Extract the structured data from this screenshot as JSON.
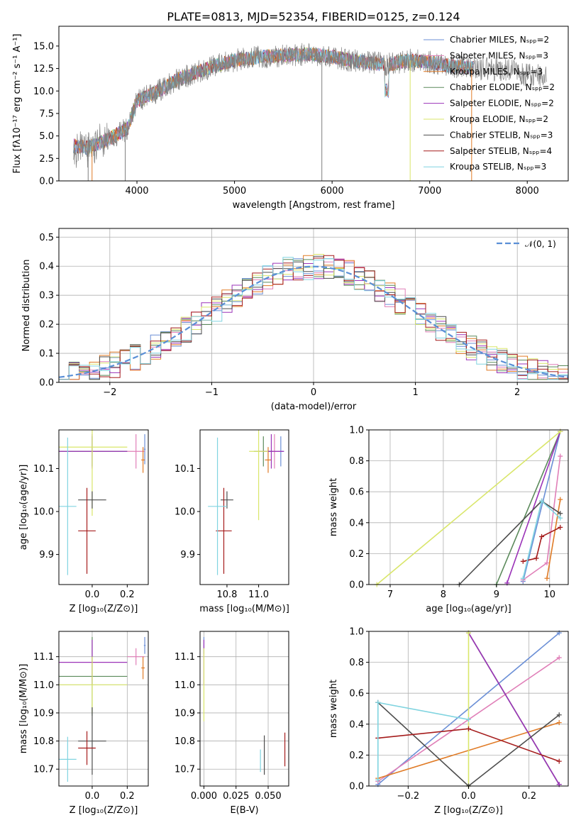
{
  "colors": {
    "chabrier_miles": "#6b8fd6",
    "salpeter_miles": "#e07fb8",
    "kroupa_miles": "#e07b26",
    "chabrier_elodie": "#5b8a5b",
    "salpeter_elodie": "#9b33b8",
    "kroupa_elodie": "#d9e66a",
    "chabrier_stelib": "#4d4d4d",
    "salpeter_stelib": "#a51c1c",
    "kroupa_stelib": "#80d4e0",
    "gauss": "#5a8fd6"
  },
  "chart_data": [
    {
      "id": "spectrum",
      "type": "line",
      "title": "PLATE=0813, MJD=52354, FIBERID=0125, z=0.124",
      "xlabel": "wavelength [Angstrom, rest frame]",
      "ylabel": "Flux [fλ10⁻¹⁷ erg cm⁻² s⁻¹ A⁻¹]",
      "xlim": [
        3200,
        8420
      ],
      "ylim": [
        0,
        17.2
      ],
      "xticks": [
        "4000",
        "5000",
        "6000",
        "7000",
        "8000"
      ],
      "yticks": [
        "0.0",
        "2.5",
        "5.0",
        "7.5",
        "10.0",
        "12.5",
        "15.0"
      ],
      "legend_position": "top-right",
      "legend": [
        "Chabrier MILES, Nₛₚₚ=2",
        "Salpeter MILES, Nₛₚₚ=3",
        "Kroupa MILES, Nₛₚₚ=3",
        "Chabrier ELODIE, Nₛₚₚ=2",
        "Salpeter ELODIE, Nₛₚₚ=2",
        "Kroupa ELODIE, Nₛₚₚ=2",
        "Chabrier STELIB, Nₛₚₚ=3",
        "Salpeter STELIB, Nₛₚₚ=4",
        "Kroupa STELIB, Nₛₚₚ=3"
      ],
      "continuum": {
        "x": [
          3350,
          3500,
          3700,
          3900,
          4000,
          4200,
          4400,
          4600,
          4800,
          5000,
          5200,
          5400,
          5600,
          5800,
          6000,
          6200,
          6400,
          6600,
          6800,
          7000,
          7200,
          7400,
          7600,
          7800,
          8000,
          8200
        ],
        "y": [
          3.9,
          3.7,
          4.6,
          5.8,
          8.9,
          9.9,
          11.2,
          12.0,
          12.8,
          13.4,
          13.7,
          13.9,
          14.0,
          14.1,
          13.8,
          13.4,
          13.1,
          13.0,
          13.4,
          13.2,
          12.8,
          12.6,
          12.4,
          12.3,
          11.8,
          11.6
        ]
      }
    },
    {
      "id": "residuals",
      "type": "bar",
      "xlabel": "(data-model)/error",
      "ylabel": "Normed distribution",
      "xlim": [
        -2.5,
        2.5
      ],
      "ylim": [
        0,
        0.53
      ],
      "xticks": [
        "−2",
        "−1",
        "0",
        "1",
        "2"
      ],
      "yticks": [
        "0.0",
        "0.1",
        "0.2",
        "0.3",
        "0.4",
        "0.5"
      ],
      "legend": [
        "𝒩(0, 1)"
      ],
      "legend_position": "top-right",
      "gaussian": {
        "mu": 0,
        "sigma": 1
      }
    },
    {
      "id": "age_vs_Z",
      "type": "scatter",
      "xlabel": "Z [log₁₀(Z/Z⊙)]",
      "ylabel": "age  [log₁₀(age/yr)]",
      "xlim": [
        -0.19,
        0.32
      ],
      "ylim": [
        9.83,
        10.19
      ],
      "xticks": [
        "0.0",
        "0.2"
      ],
      "yticks": [
        "9.9",
        "10.0",
        "10.1"
      ],
      "points": [
        {
          "c": "chabrier_miles",
          "x": 0.3,
          "y": 10.145,
          "xerr": 0.005,
          "yerr": 0.035
        },
        {
          "c": "salpeter_miles",
          "x": 0.25,
          "y": 10.14,
          "xerr": 0.05,
          "yerr": 0.04
        },
        {
          "c": "kroupa_miles",
          "x": 0.29,
          "y": 10.12,
          "xerr": 0.01,
          "yerr": 0.03
        },
        {
          "c": "chabrier_elodie",
          "x": 0.0,
          "y": 10.14,
          "xerr": 0.2,
          "yerr": 0.035
        },
        {
          "c": "salpeter_elodie",
          "x": 0.0,
          "y": 10.14,
          "xerr": 0.2,
          "yerr": 0.04
        },
        {
          "c": "kroupa_elodie",
          "x": 0.0,
          "y": 10.15,
          "xerr": 0.2,
          "yerr": 0.16
        },
        {
          "c": "chabrier_stelib",
          "x": 0.0,
          "y": 10.027,
          "xerr": 0.08,
          "yerr": 0.02
        },
        {
          "c": "salpeter_stelib",
          "x": -0.03,
          "y": 9.955,
          "xerr": 0.05,
          "yerr": 0.1
        },
        {
          "c": "kroupa_stelib",
          "x": -0.14,
          "y": 10.012,
          "xerr": 0.05,
          "yerr": 0.16
        }
      ]
    },
    {
      "id": "age_vs_mass",
      "type": "scatter",
      "xlabel": "mass [log₁₀(M/M⊙)]",
      "ylabel": "",
      "xlim": [
        10.63,
        11.19
      ],
      "ylim": [
        9.83,
        10.19
      ],
      "xticks": [
        "10.8",
        "11.0"
      ],
      "yticks": [
        "9.9",
        "10.0",
        "10.1"
      ],
      "points": [
        {
          "c": "chabrier_miles",
          "x": 11.14,
          "y": 10.14,
          "xerr": 0.02,
          "yerr": 0.035
        },
        {
          "c": "salpeter_miles",
          "x": 11.1,
          "y": 10.14,
          "xerr": 0.04,
          "yerr": 0.04
        },
        {
          "c": "kroupa_miles",
          "x": 11.06,
          "y": 10.12,
          "xerr": 0.02,
          "yerr": 0.03
        },
        {
          "c": "chabrier_elodie",
          "x": 11.03,
          "y": 10.14,
          "xerr": 0.06,
          "yerr": 0.035
        },
        {
          "c": "salpeter_elodie",
          "x": 11.08,
          "y": 10.14,
          "xerr": 0.08,
          "yerr": 0.04
        },
        {
          "c": "kroupa_elodie",
          "x": 11.0,
          "y": 10.14,
          "xerr": 0.06,
          "yerr": 0.16
        },
        {
          "c": "chabrier_stelib",
          "x": 10.8,
          "y": 10.027,
          "xerr": 0.04,
          "yerr": 0.02
        },
        {
          "c": "salpeter_stelib",
          "x": 10.78,
          "y": 9.955,
          "xerr": 0.05,
          "yerr": 0.1
        },
        {
          "c": "kroupa_stelib",
          "x": 10.74,
          "y": 10.012,
          "xerr": 0.06,
          "yerr": 0.16
        }
      ]
    },
    {
      "id": "massweight_vs_age",
      "type": "line",
      "xlabel": "age  [log₁₀(age/yr)]",
      "ylabel": "mass weight",
      "xlim": [
        6.6,
        10.35
      ],
      "ylim": [
        0,
        1
      ],
      "xticks": [
        "7",
        "8",
        "9",
        "10"
      ],
      "yticks": [
        "0.0",
        "0.2",
        "0.4",
        "0.6",
        "0.8",
        "1.0"
      ],
      "series": [
        {
          "c": "chabrier_miles",
          "x": [
            9.5,
            10.2
          ],
          "y": [
            0.02,
            0.99
          ]
        },
        {
          "c": "salpeter_miles",
          "x": [
            9.5,
            9.95,
            10.2
          ],
          "y": [
            0.03,
            0.14,
            0.83
          ]
        },
        {
          "c": "kroupa_miles",
          "x": [
            9.95,
            10.2
          ],
          "y": [
            0.04,
            0.55
          ]
        },
        {
          "c": "chabrier_elodie",
          "x": [
            9.0,
            10.2
          ],
          "y": [
            0.0,
            0.99
          ]
        },
        {
          "c": "salpeter_elodie",
          "x": [
            9.2,
            10.2
          ],
          "y": [
            0.01,
            0.99
          ]
        },
        {
          "c": "kroupa_elodie",
          "x": [
            6.75,
            10.2
          ],
          "y": [
            0.0,
            0.99
          ]
        },
        {
          "c": "chabrier_stelib",
          "x": [
            8.3,
            9.85,
            10.2
          ],
          "y": [
            0.0,
            0.54,
            0.46
          ]
        },
        {
          "c": "salpeter_stelib",
          "x": [
            9.5,
            9.75,
            9.85,
            10.2
          ],
          "y": [
            0.15,
            0.17,
            0.31,
            0.37
          ]
        },
        {
          "c": "kroupa_stelib",
          "x": [
            9.5,
            9.85,
            10.2
          ],
          "y": [
            0.04,
            0.54,
            0.43
          ]
        }
      ]
    },
    {
      "id": "mass_vs_Z",
      "type": "scatter",
      "xlabel": "Z [log₁₀(Z/Z⊙)]",
      "ylabel": "mass [log₁₀(M/M⊙)]",
      "xlim": [
        -0.19,
        0.32
      ],
      "ylim": [
        10.64,
        11.19
      ],
      "xticks": [
        "0.0",
        "0.2"
      ],
      "yticks": [
        "10.7",
        "10.8",
        "10.9",
        "11.0",
        "11.1"
      ],
      "points": [
        {
          "c": "chabrier_miles",
          "x": 0.3,
          "y": 11.14,
          "xerr": 0.005,
          "yerr": 0.03
        },
        {
          "c": "salpeter_miles",
          "x": 0.25,
          "y": 11.1,
          "xerr": 0.05,
          "yerr": 0.03
        },
        {
          "c": "kroupa_miles",
          "x": 0.29,
          "y": 11.06,
          "xerr": 0.01,
          "yerr": 0.04
        },
        {
          "c": "chabrier_elodie",
          "x": 0.0,
          "y": 11.03,
          "xerr": 0.2,
          "yerr": 0.14
        },
        {
          "c": "salpeter_elodie",
          "x": 0.0,
          "y": 11.08,
          "xerr": 0.2,
          "yerr": 0.08
        },
        {
          "c": "kroupa_elodie",
          "x": 0.0,
          "y": 11.0,
          "xerr": 0.2,
          "yerr": 0.1
        },
        {
          "c": "chabrier_stelib",
          "x": 0.0,
          "y": 10.8,
          "xerr": 0.08,
          "yerr": 0.12
        },
        {
          "c": "salpeter_stelib",
          "x": -0.03,
          "y": 10.775,
          "xerr": 0.05,
          "yerr": 0.06
        },
        {
          "c": "kroupa_stelib",
          "x": -0.14,
          "y": 10.735,
          "xerr": 0.05,
          "yerr": 0.08
        }
      ]
    },
    {
      "id": "mass_vs_ebv",
      "type": "scatter",
      "xlabel": "E(B-V)",
      "ylabel": "",
      "xlim": [
        -0.003,
        0.066
      ],
      "ylim": [
        10.64,
        11.19
      ],
      "xticks": [
        "0.000",
        "0.025",
        "0.050"
      ],
      "yticks": [
        "10.7",
        "10.8",
        "10.9",
        "11.0",
        "11.1"
      ],
      "points": [
        {
          "c": "chabrier_miles",
          "x": 0.0,
          "y": 11.14,
          "xerr": 0,
          "yerr": 0.03
        },
        {
          "c": "salpeter_elodie",
          "x": 0.0,
          "y": 11.08,
          "xerr": 0,
          "yerr": 0.08
        },
        {
          "c": "kroupa_elodie",
          "x": 0.0,
          "y": 11.0,
          "xerr": 0,
          "yerr": 0.13
        },
        {
          "c": "chabrier_stelib",
          "x": 0.047,
          "y": 10.75,
          "xerr": 0,
          "yerr": 0.07
        },
        {
          "c": "salpeter_stelib",
          "x": 0.063,
          "y": 10.77,
          "xerr": 0,
          "yerr": 0.06
        },
        {
          "c": "kroupa_stelib",
          "x": 0.044,
          "y": 10.73,
          "xerr": 0,
          "yerr": 0.04
        }
      ]
    },
    {
      "id": "massweight_vs_Z",
      "type": "line",
      "xlabel": "Z [log₁₀(Z/Z⊙)]",
      "ylabel": "mass weight",
      "xlim": [
        -0.33,
        0.33
      ],
      "ylim": [
        0,
        1
      ],
      "xticks": [
        "−0.2",
        "0.0",
        "0.2"
      ],
      "yticks": [
        "0.0",
        "0.2",
        "0.4",
        "0.6",
        "0.8",
        "1.0"
      ],
      "series": [
        {
          "c": "chabrier_miles",
          "x": [
            -0.3,
            0.3
          ],
          "y": [
            0.01,
            0.99
          ]
        },
        {
          "c": "salpeter_miles",
          "x": [
            -0.3,
            0.3
          ],
          "y": [
            0.03,
            0.83
          ]
        },
        {
          "c": "kroupa_miles",
          "x": [
            -0.3,
            0.3
          ],
          "y": [
            0.05,
            0.41
          ]
        },
        {
          "c": "chabrier_elodie",
          "x": [
            0.0,
            0.3
          ],
          "y": [
            0.99,
            0.01
          ]
        },
        {
          "c": "salpeter_elodie",
          "x": [
            0.0,
            0.3
          ],
          "y": [
            0.99,
            0.01
          ]
        },
        {
          "c": "kroupa_elodie",
          "x": [
            0.0,
            0.0
          ],
          "y": [
            0.0,
            0.99
          ]
        },
        {
          "c": "chabrier_stelib",
          "x": [
            -0.3,
            0.0,
            0.3
          ],
          "y": [
            0.54,
            0.0,
            0.46
          ]
        },
        {
          "c": "salpeter_stelib",
          "x": [
            -0.3,
            0.0,
            0.3
          ],
          "y": [
            0.31,
            0.37,
            0.16
          ]
        },
        {
          "c": "kroupa_stelib",
          "x": [
            -0.3,
            -0.3,
            0.0
          ],
          "y": [
            0.04,
            0.54,
            0.43
          ]
        }
      ]
    }
  ]
}
